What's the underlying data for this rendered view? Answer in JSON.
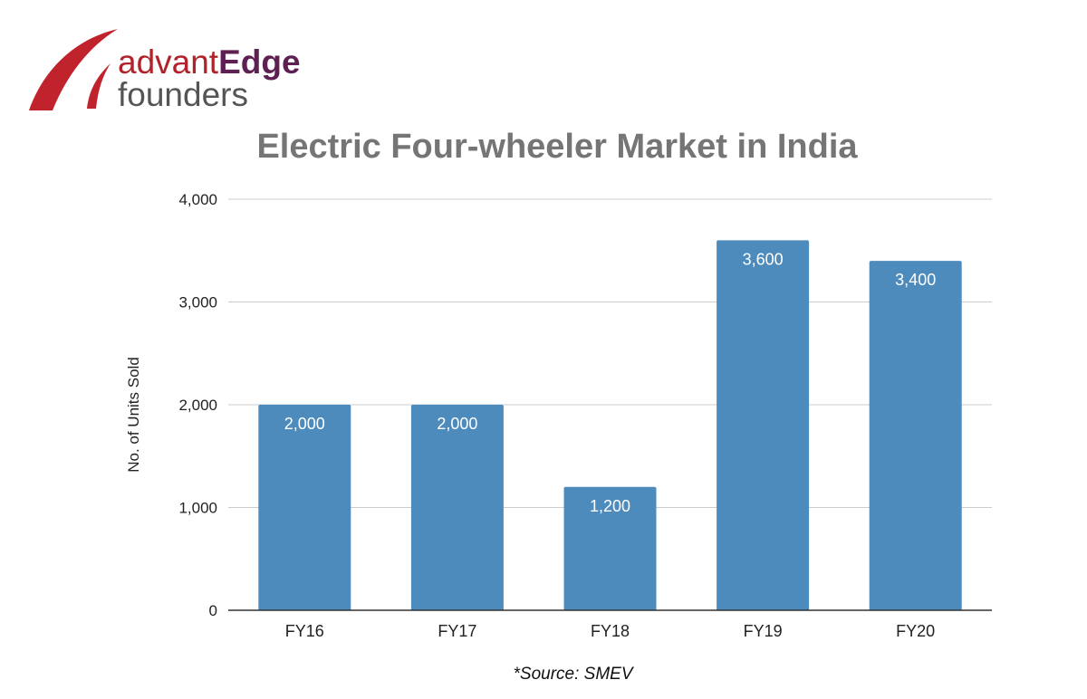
{
  "logo": {
    "word1": "advant",
    "word2": "Edge",
    "line2": "founders"
  },
  "source_note": "*Source: SMEV",
  "chart_data": {
    "type": "bar",
    "title": "Electric Four-wheeler Market in India",
    "xlabel": "",
    "ylabel": "No. of Units Sold",
    "categories": [
      "FY16",
      "FY17",
      "FY18",
      "FY19",
      "FY20"
    ],
    "values": [
      2000,
      2000,
      1200,
      3600,
      3400
    ],
    "data_labels": [
      "2,000",
      "2,000",
      "1,200",
      "3,600",
      "3,400"
    ],
    "ylim": [
      0,
      4000
    ],
    "yticks": [
      0,
      1000,
      2000,
      3000,
      4000
    ],
    "ytick_labels": [
      "0",
      "1,000",
      "2,000",
      "3,000",
      "4,000"
    ],
    "grid": true,
    "bar_color": "#4e8bbd",
    "data_label_color": "#ffffff"
  }
}
